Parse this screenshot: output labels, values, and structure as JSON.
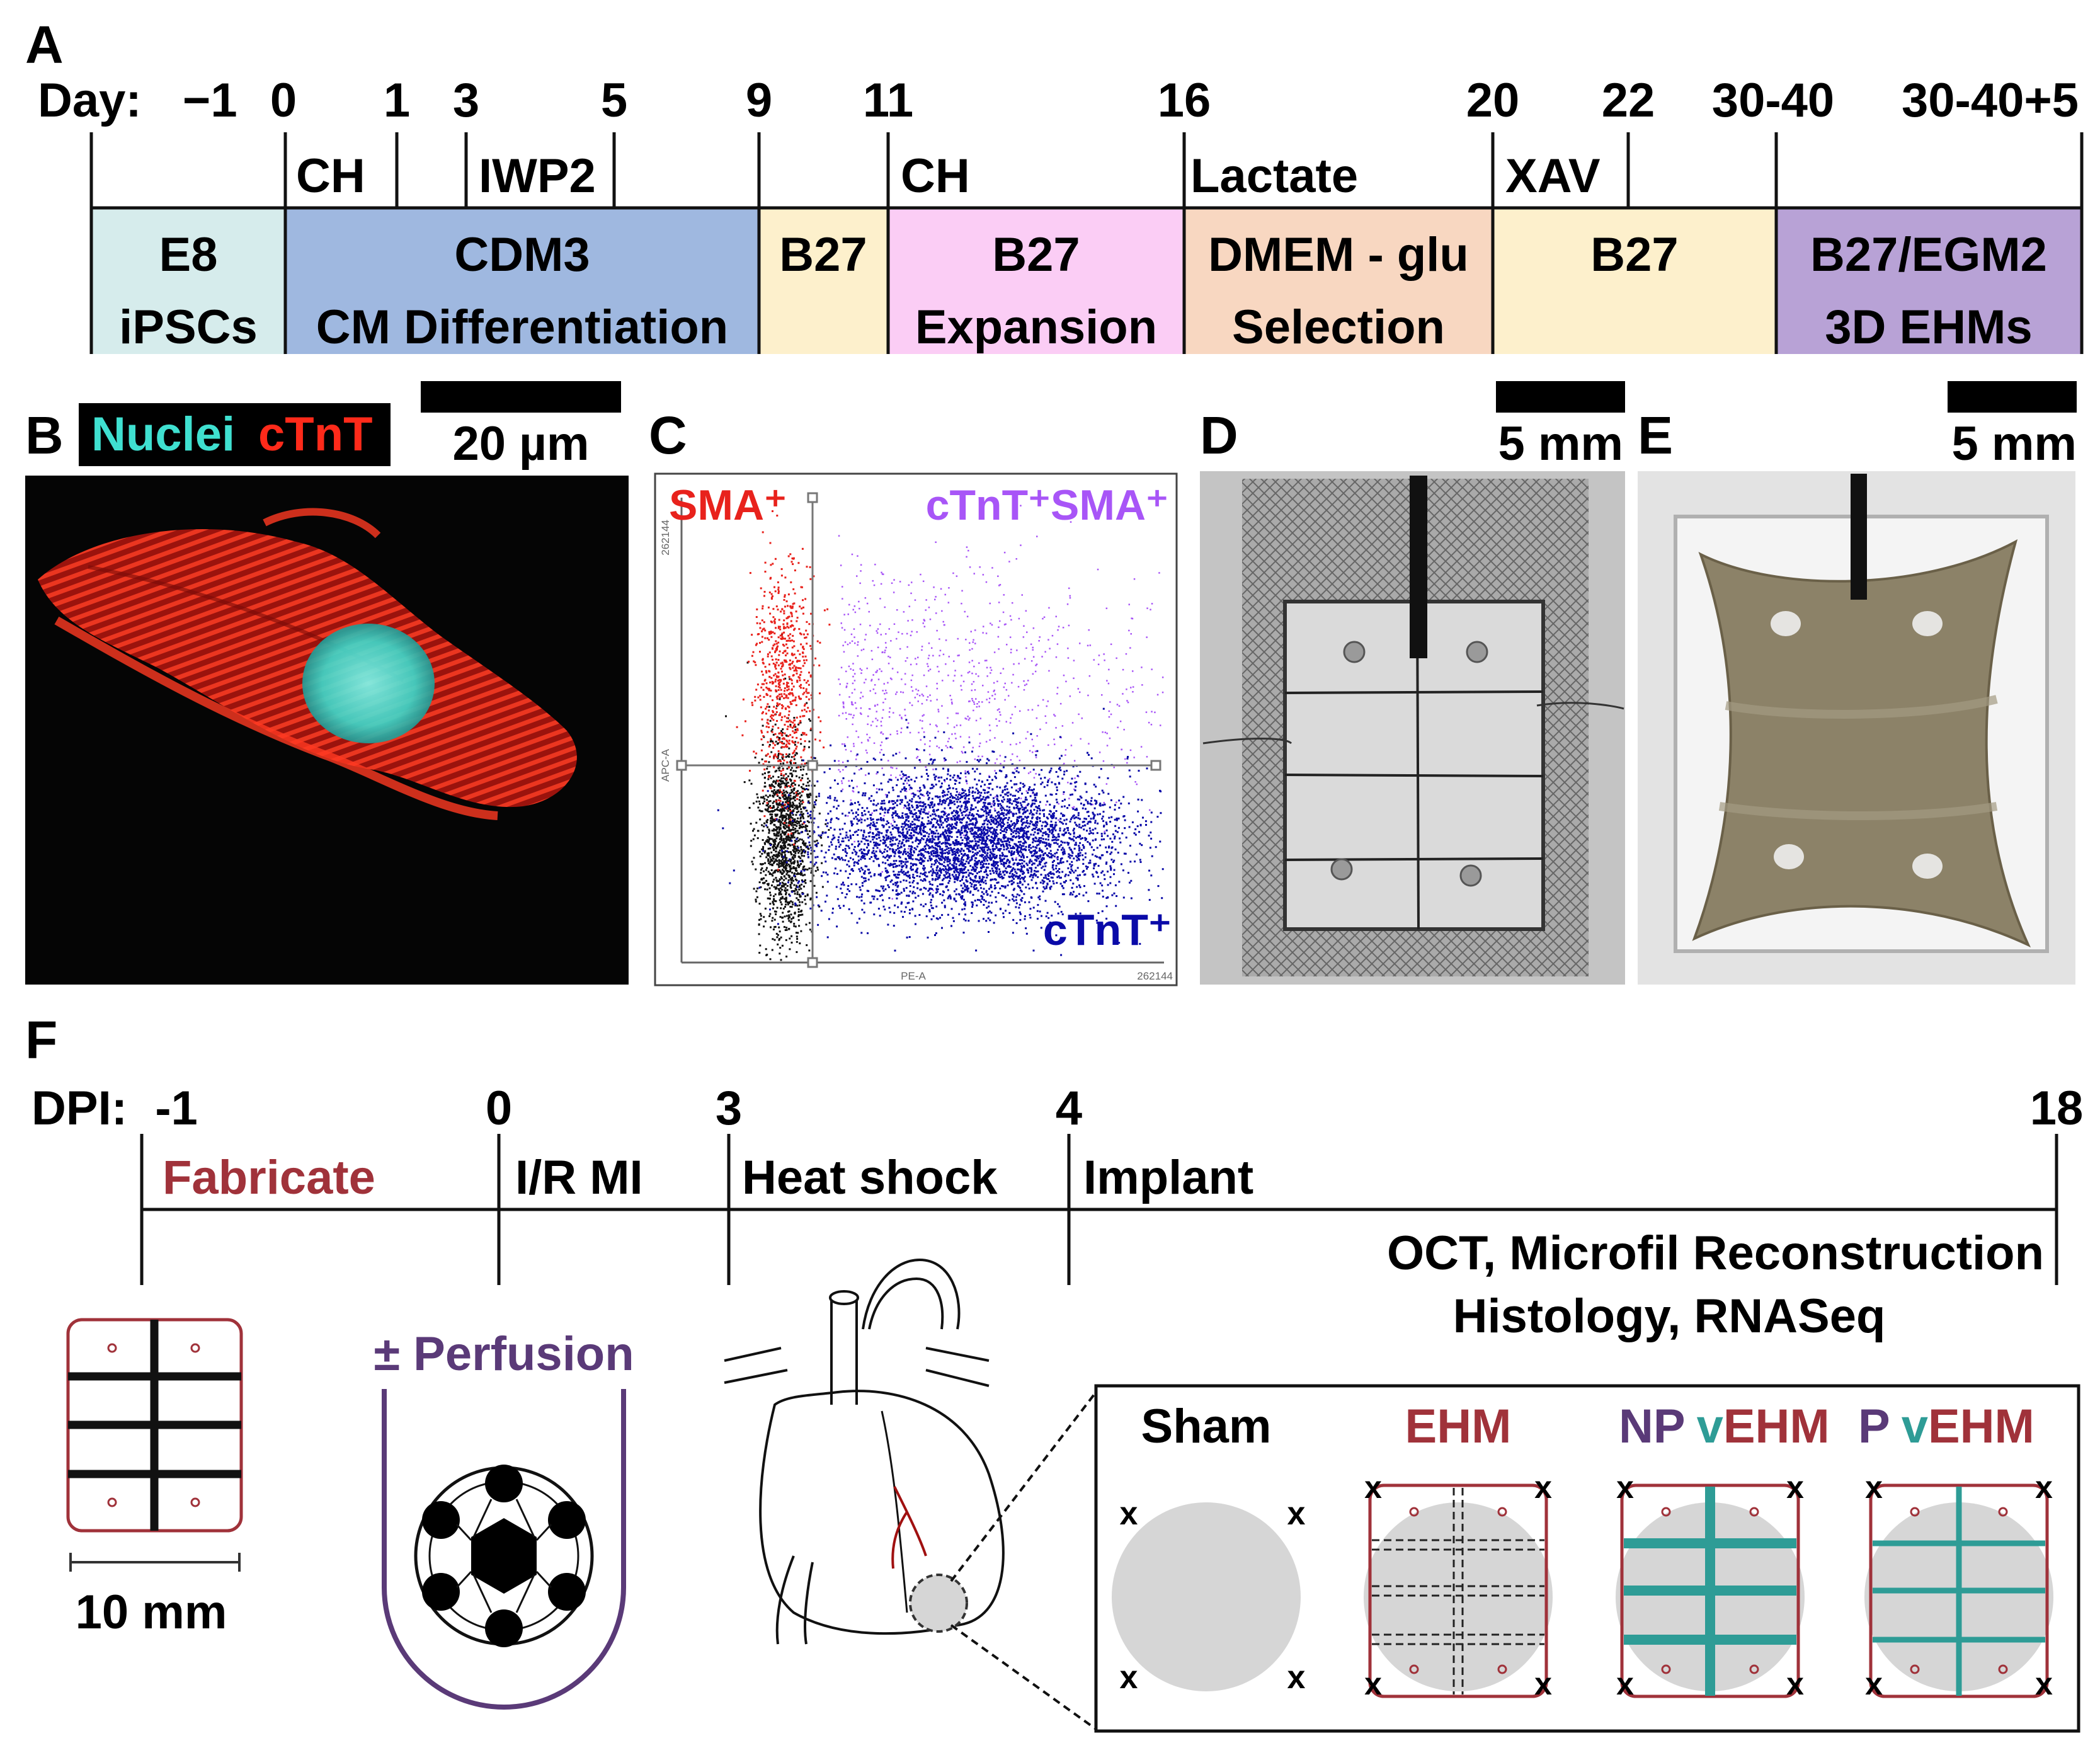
{
  "panels": {
    "a": "A",
    "b": "B",
    "c": "C",
    "d": "D",
    "e": "E",
    "f": "F"
  },
  "timeline_a": {
    "day_prefix": "Day:",
    "days": [
      "−1",
      "0",
      "1",
      "3",
      "5",
      "9",
      "11",
      "16",
      "20",
      "22",
      "30-40",
      "30-40+5"
    ],
    "treatments": [
      "CH",
      "IWP2",
      "CH",
      "Lactate",
      "XAV"
    ],
    "stages": [
      {
        "medium": "E8",
        "purpose": "iPSCs",
        "color": "#d6ecec"
      },
      {
        "medium": "CDM3",
        "purpose": "CM Differentiation",
        "color": "#9fb8e0"
      },
      {
        "medium": "B27",
        "purpose": "",
        "color": "#fdf0cc"
      },
      {
        "medium": "B27",
        "purpose": "Expansion",
        "color": "#fbcdf5"
      },
      {
        "medium": "DMEM - glu",
        "purpose": "Selection",
        "color": "#f8d7c1"
      },
      {
        "medium": "B27",
        "purpose": "",
        "color": "#fdf0cc"
      },
      {
        "medium": "B27/EGM2",
        "purpose": "3D EHMs",
        "color": "#b8a2d6"
      }
    ]
  },
  "panel_b": {
    "legend_nuclei": "Nuclei",
    "legend_ctnt": "cTnT",
    "scale_bar": "20 µm",
    "nuclei_color": "#3fe0d0",
    "ctnt_color": "#ff2a1a"
  },
  "panel_c": {
    "q_sma": "SMA⁺",
    "q_double": "cTnT⁺SMA⁺",
    "q_ctnt": "cTnT⁺",
    "y_axis": "APC-A",
    "x_axis": "PE-A",
    "y_max": "262144",
    "x_max": "262144",
    "colors": {
      "sma": "#e8221c",
      "double": "#a855f7",
      "ctnt": "#0a0aa8",
      "neg": "#111111"
    }
  },
  "panel_d": {
    "scale_bar": "5 mm"
  },
  "panel_e": {
    "scale_bar": "5 mm"
  },
  "timeline_f": {
    "prefix": "DPI:",
    "days": [
      "-1",
      "0",
      "3",
      "4",
      "18"
    ],
    "events": [
      "Fabricate",
      "I/R MI",
      "Heat shock",
      "Implant"
    ],
    "analysis_line1": "OCT, Microfil Reconstruction",
    "analysis_line2": "Histology, RNASeq",
    "mold_scale": "10 mm",
    "perfusion": "± Perfusion",
    "groups": {
      "sham": "Sham",
      "ehm": "EHM",
      "np": "NP",
      "p": "P",
      "v": "v",
      "vehm": "EHM"
    },
    "suture_mark": "x",
    "colors": {
      "maroon": "#a0323a",
      "purple": "#5a3a78",
      "teal": "#2e9c96",
      "grey": "#d6d6d6"
    }
  }
}
